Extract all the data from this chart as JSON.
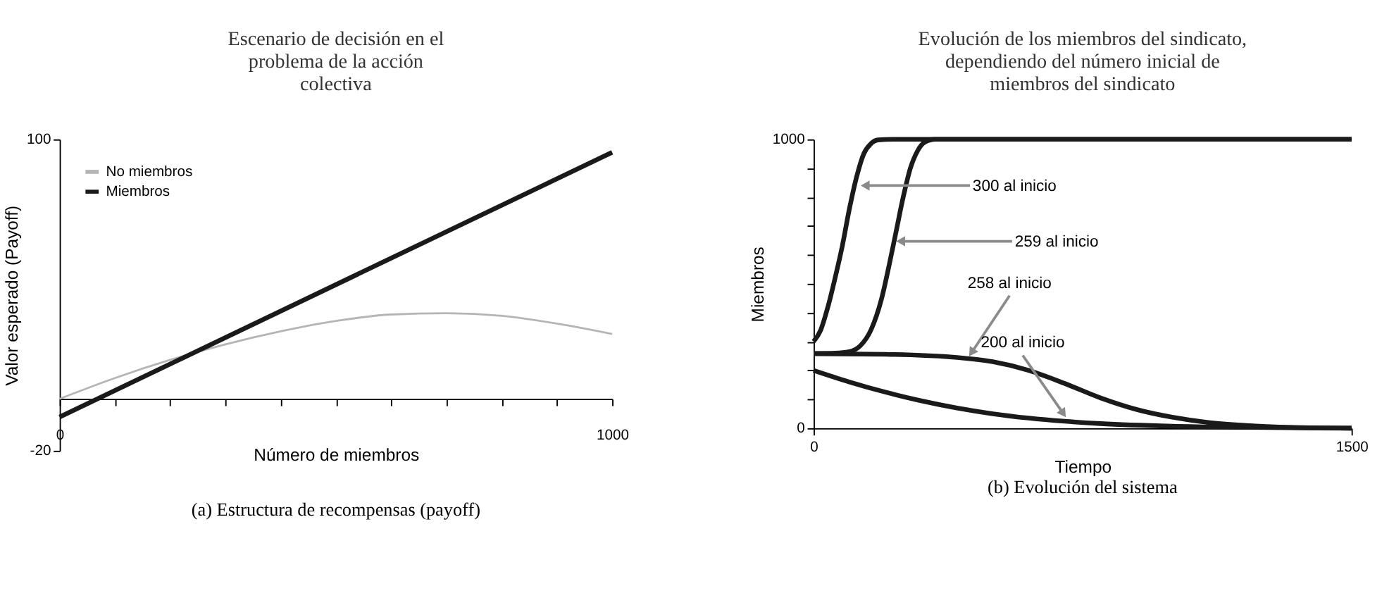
{
  "chart_data": [
    {
      "type": "line",
      "title": "Escenario de decisión en el problema de la acción colectiva",
      "xlabel": "Número de miembros",
      "ylabel": "Valor esperado (Payoff)",
      "xlim": [
        0,
        1000
      ],
      "xticks": [
        0,
        {
          "value": 100,
          "label": null
        },
        {
          "value": 200,
          "label": null
        },
        {
          "value": 300,
          "label": null
        },
        {
          "value": 400,
          "label": null
        },
        {
          "value": 500,
          "label": null
        },
        {
          "value": 600,
          "label": null
        },
        {
          "value": 700,
          "label": null
        },
        {
          "value": 800,
          "label": null
        },
        {
          "value": 900,
          "label": null
        },
        1000
      ],
      "ylim": [
        -20,
        100
      ],
      "yticks": [
        -20,
        100
      ],
      "grid": false,
      "legend": "top left",
      "series": [
        {
          "name": "No miembros",
          "color": "#b5b5b5",
          "x": [
            0,
            100,
            200,
            300,
            400,
            500,
            600,
            700,
            800,
            900,
            1000
          ],
          "values": [
            0,
            8,
            15,
            21,
            26,
            30,
            32.5,
            33,
            32,
            29,
            25
          ]
        },
        {
          "name": "Miembros",
          "color": "#1a1a1a",
          "x": [
            0,
            1000
          ],
          "values": [
            -7,
            95
          ]
        }
      ],
      "annotations": [
        "(a) Estructura de recompensas (payoff)"
      ]
    },
    {
      "type": "line",
      "title": "Evolución de los miembros del sindicato, dependiendo del número inicial de miembros del sindicato",
      "xlabel": "Tiempo",
      "ylabel": "Miembros",
      "xlim": [
        0,
        1500
      ],
      "xticks": [
        0,
        1500
      ],
      "ylim": [
        0,
        1000
      ],
      "yticks": [
        0,
        {
          "value": 100,
          "label": null
        },
        {
          "value": 200,
          "label": null
        },
        {
          "value": 300,
          "label": null
        },
        {
          "value": 400,
          "label": null
        },
        {
          "value": 500,
          "label": null
        },
        {
          "value": 600,
          "label": null
        },
        {
          "value": 700,
          "label": null
        },
        {
          "value": 800,
          "label": null
        },
        {
          "value": 900,
          "label": null
        },
        1000
      ],
      "grid": false,
      "legend": false,
      "series": [
        {
          "color": "#1a1a1a",
          "x": [
            0,
            20,
            40,
            60,
            80,
            100,
            120,
            140,
            160,
            180,
            220,
            1500
          ],
          "values": [
            300,
            340,
            420,
            520,
            630,
            760,
            870,
            950,
            985,
            998,
            1000,
            1000
          ]
        },
        {
          "color": "#1a1a1a",
          "x": [
            0,
            60,
            100,
            130,
            160,
            190,
            210,
            230,
            250,
            270,
            290,
            310,
            340,
            1500
          ],
          "values": [
            259,
            260,
            265,
            285,
            340,
            450,
            560,
            680,
            800,
            900,
            960,
            990,
            1000,
            1000
          ]
        },
        {
          "color": "#1a1a1a",
          "x": [
            0,
            200,
            400,
            500,
            600,
            700,
            800,
            900,
            1000,
            1100,
            1200,
            1300,
            1500
          ],
          "values": [
            258,
            256,
            245,
            230,
            200,
            155,
            105,
            65,
            38,
            20,
            10,
            4,
            0
          ]
        },
        {
          "color": "#1a1a1a",
          "x": [
            0,
            100,
            200,
            300,
            400,
            500,
            600,
            700,
            800,
            1000,
            1200,
            1500
          ],
          "values": [
            200,
            160,
            125,
            95,
            70,
            50,
            35,
            24,
            16,
            7,
            3,
            0
          ]
        }
      ],
      "annotations": [
        {
          "text": "300 al inicio",
          "x": 148,
          "y": 840
        },
        {
          "text": "259 al inicio",
          "x": 247,
          "y": 647
        },
        {
          "text": "258 al inicio",
          "x": 443,
          "y": 266
        },
        {
          "text": "200 al inicio",
          "x": 694,
          "y": 55
        },
        "(b) Evolución del sistema"
      ]
    }
  ]
}
